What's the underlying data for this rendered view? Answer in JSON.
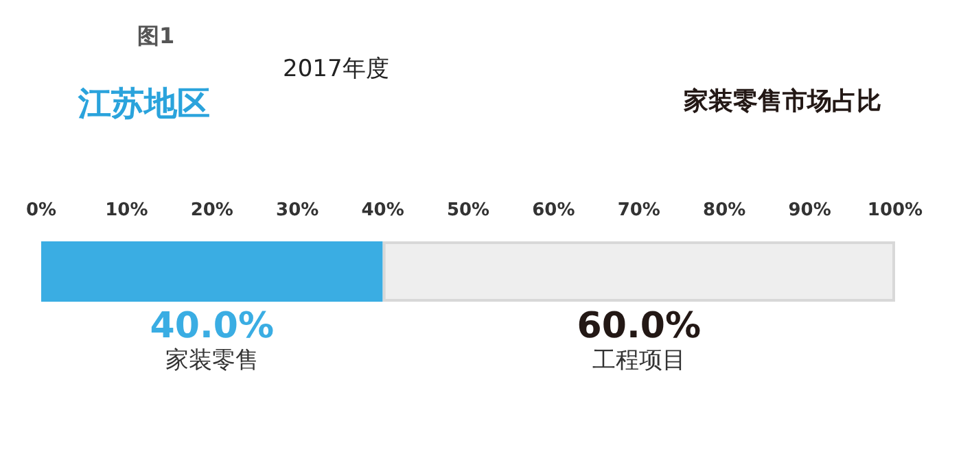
{
  "chart_data": {
    "type": "bar",
    "orientation": "horizontal",
    "stacked": true,
    "title": "家装零售市场占比",
    "subtitle": "江苏地区",
    "annotations": [
      "图1",
      "2017年度"
    ],
    "categories": [
      null
    ],
    "series": [
      {
        "name": "家装零售",
        "color": "#3aade3",
        "values": [
          40
        ],
        "value_labels": [
          "40.0%"
        ]
      },
      {
        "name": "工程项目",
        "color": "#eeeeee",
        "values": [
          60
        ],
        "value_labels": [
          "60.0%"
        ]
      }
    ],
    "xlim": [
      0,
      100
    ],
    "xticks": [
      {
        "value": 0,
        "label": "0%"
      },
      {
        "value": 10,
        "label": "10%"
      },
      {
        "value": 20,
        "label": "20%"
      },
      {
        "value": 30,
        "label": "30%"
      },
      {
        "value": 40,
        "label": "40%"
      },
      {
        "value": 50,
        "label": "50%"
      },
      {
        "value": 60,
        "label": "60%"
      },
      {
        "value": 70,
        "label": "70%"
      },
      {
        "value": 80,
        "label": "80%"
      },
      {
        "value": 90,
        "label": "90%"
      },
      {
        "value": 100,
        "label": "100%"
      }
    ],
    "tick_labels": "x",
    "legend": false,
    "grid": false
  }
}
